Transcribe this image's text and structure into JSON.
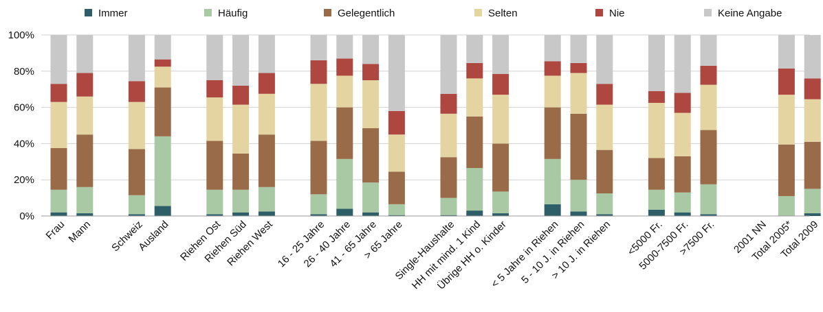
{
  "chart_data": {
    "type": "bar",
    "stacked": true,
    "title": "",
    "xlabel": "",
    "ylabel": "",
    "ylim": [
      0,
      100
    ],
    "y_ticks": [
      "0%",
      "20%",
      "40%",
      "60%",
      "80%",
      "100%"
    ],
    "grid": "horizontal",
    "legend_position": "top",
    "categories": [
      "Frau",
      "Mann",
      "",
      "Schweiz",
      "Ausland",
      "",
      "Riehen Ost",
      "Riehen Süd",
      "Riehen West",
      "",
      "16 - 25 Jahre",
      "26 - 40 Jahre",
      "41 - 65 Jahre",
      "> 65 Jahre",
      "",
      "Single-Haushalte",
      "HH mit mind. 1 Kind",
      "Übrige HH o. Kinder",
      "",
      "< 5 Jahre in Riehen",
      "5 - 10 J. in Riehen",
      "> 10 J. in Riehen",
      "",
      "<5000 Fr.",
      "5000-7500 Fr.",
      ">7500 Fr.",
      "",
      "2001 NN",
      "Total 2005*",
      "Total 2009"
    ],
    "series": [
      {
        "name": "Immer",
        "color": "#2e5f69",
        "values": [
          2,
          1.5,
          null,
          1,
          5.5,
          null,
          1,
          2,
          2.5,
          null,
          1,
          4,
          2,
          0.5,
          null,
          0.5,
          3,
          1.5,
          null,
          6.5,
          2.5,
          1,
          null,
          3.5,
          2,
          1,
          null,
          0,
          0,
          1.5
        ]
      },
      {
        "name": "Häufig",
        "color": "#a9c9a4",
        "values": [
          12.5,
          14.5,
          null,
          10.5,
          38.5,
          null,
          13.5,
          12.5,
          13.5,
          null,
          11,
          27.5,
          16.5,
          6,
          null,
          9.5,
          23.5,
          12,
          null,
          25,
          17.5,
          11.5,
          null,
          11,
          11,
          16.5,
          null,
          0,
          11,
          13.5
        ]
      },
      {
        "name": "Gelegentlich",
        "color": "#9a6b49",
        "values": [
          23,
          29,
          null,
          25.5,
          27,
          null,
          27,
          20,
          29,
          null,
          29.5,
          28.5,
          30,
          18,
          null,
          22.5,
          28.5,
          26.5,
          null,
          28.5,
          36.5,
          24,
          null,
          17.5,
          20,
          30,
          null,
          0,
          28.5,
          26
        ]
      },
      {
        "name": "Selten",
        "color": "#e4d4a2",
        "values": [
          25.5,
          21,
          null,
          26,
          11.5,
          null,
          24,
          27,
          22.5,
          null,
          31.5,
          17.5,
          26.5,
          20.5,
          null,
          24,
          21,
          27,
          null,
          17.5,
          22.5,
          25,
          null,
          30.5,
          24,
          25,
          null,
          0,
          27.5,
          23.5
        ]
      },
      {
        "name": "Nie",
        "color": "#ad4740",
        "values": [
          10,
          13,
          null,
          11.5,
          4,
          null,
          9.5,
          10.5,
          11.5,
          null,
          13,
          9.5,
          9,
          13,
          null,
          11,
          8.5,
          11.5,
          null,
          8,
          5.5,
          11.5,
          null,
          6.5,
          11,
          10.5,
          null,
          0,
          14.5,
          11.5
        ]
      },
      {
        "name": "Keine Angabe",
        "color": "#c8c8c8",
        "values": [
          27,
          21,
          null,
          25.5,
          13.5,
          null,
          25,
          28,
          21,
          null,
          14,
          13,
          16,
          42,
          null,
          32.5,
          15.5,
          21.5,
          null,
          14.5,
          15.5,
          27,
          null,
          31,
          32,
          17,
          null,
          0,
          18.5,
          24
        ]
      }
    ]
  }
}
